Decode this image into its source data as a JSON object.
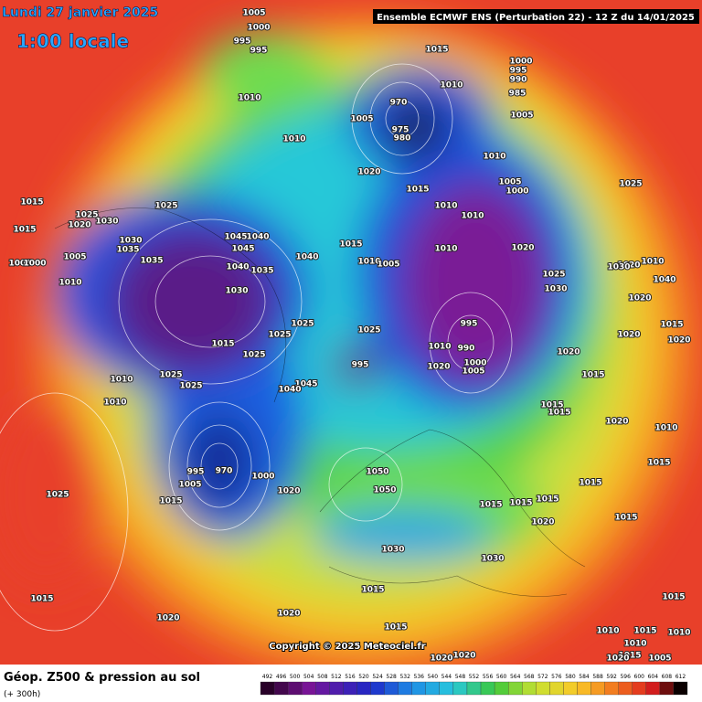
{
  "header": {
    "date": "Lundi 27 janvier 2025",
    "time": "1:00 locale",
    "run": "Ensemble ECMWF ENS  (Perturbation 22)  -  12 Z du 14/01/2025"
  },
  "footer": {
    "title": "Géop. Z500 & pression au sol",
    "lead": "(+ 300h)",
    "copyright": "Copyright © 2025 Meteociel.fr"
  },
  "scale": {
    "ticks": [
      492,
      496,
      500,
      504,
      508,
      512,
      516,
      520,
      524,
      528,
      532,
      536,
      540,
      544,
      548,
      552,
      556,
      560,
      564,
      568,
      572,
      576,
      580,
      584,
      588,
      592,
      596,
      600,
      604,
      608,
      612
    ]
  },
  "isobar_labels": [
    "1005",
    "1000",
    "995",
    "995",
    "1010",
    "1015",
    "1010",
    "1000",
    "995",
    "990",
    "985",
    "1005",
    "970",
    "1005",
    "975",
    "980",
    "1010",
    "1020",
    "1015",
    "1010",
    "1005",
    "1000",
    "1025",
    "1015",
    "1015",
    "1005",
    "1000",
    "1010",
    "1020",
    "1025",
    "1030",
    "1030",
    "1035",
    "1005",
    "1035",
    "1025",
    "1045",
    "1040",
    "1045",
    "1040",
    "1035",
    "1030",
    "1040",
    "1025",
    "1025",
    "1015",
    "1025",
    "1015",
    "1010",
    "1005",
    "1010",
    "1010",
    "1010",
    "1020",
    "1025",
    "995",
    "990",
    "1010",
    "1000",
    "1005",
    "1020",
    "1025",
    "995",
    "1045",
    "1040",
    "1010",
    "1010",
    "1025",
    "1025",
    "1020",
    "1000",
    "995",
    "970",
    "1005",
    "1015",
    "1025",
    "1015",
    "1020",
    "1020",
    "1050",
    "1050",
    "1030",
    "1015",
    "1015",
    "1015",
    "1020",
    "1030",
    "1015",
    "1015",
    "1020",
    "1020",
    "1015",
    "1015",
    "1015",
    "1010",
    "1015",
    "1020",
    "1010",
    "1040",
    "1020",
    "1030",
    "1020",
    "1020",
    "1020",
    "1030",
    "1015",
    "1015",
    "1015",
    "1020",
    "1015",
    "1010",
    "1015",
    "1010",
    "1015",
    "1010",
    "1005",
    "1020"
  ]
}
